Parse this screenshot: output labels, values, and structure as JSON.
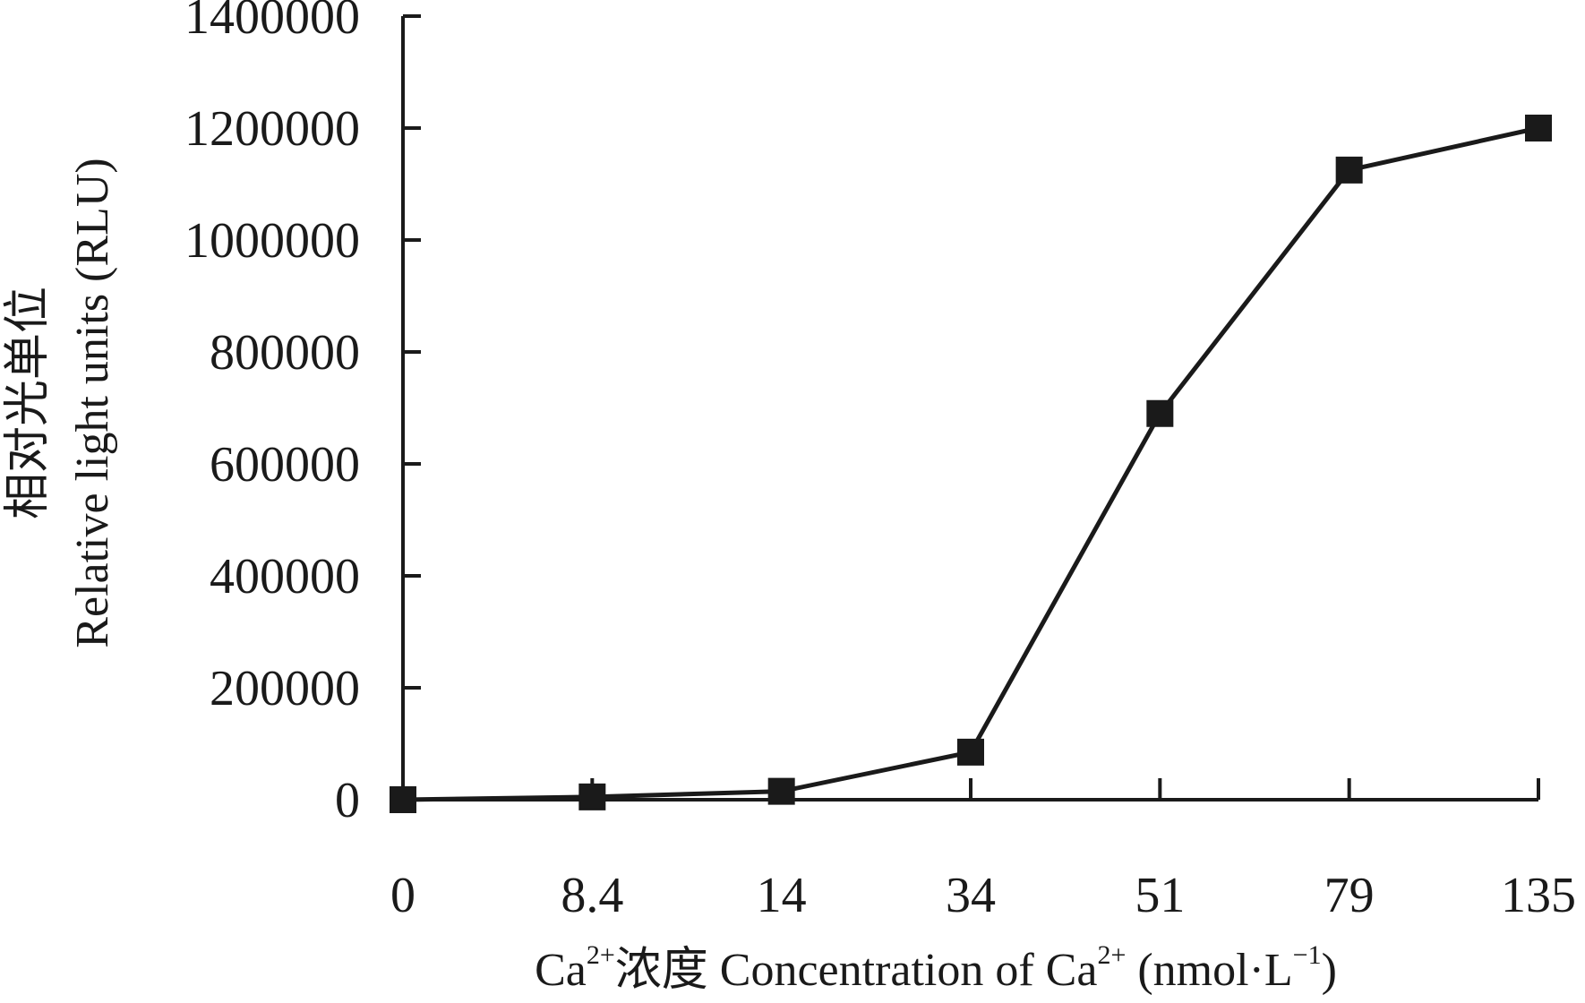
{
  "chart_data": {
    "type": "line",
    "categories": [
      "0",
      "8.4",
      "14",
      "34",
      "51",
      "79",
      "135"
    ],
    "series": [
      {
        "values": [
          0,
          5000,
          15000,
          85000,
          690000,
          1125000,
          1200000
        ]
      }
    ],
    "ylim": [
      0,
      1400000
    ],
    "yticks": [
      0,
      200000,
      400000,
      600000,
      800000,
      1000000,
      1200000,
      1400000
    ],
    "ytick_labels": [
      "0",
      "200000",
      "400000",
      "600000",
      "800000",
      "1000000",
      "1200000",
      "1400000"
    ],
    "ylabel": {
      "line1": "相对光单位",
      "line2": "Relative light units (RLU)"
    },
    "xlabel": {
      "prefix": "Ca",
      "sup1": "2+",
      "middle": "浓度 Concentration of Ca",
      "sup2": "2+",
      "unit_open": " (nmol·L",
      "sup3": "−1",
      "unit_close": ")"
    },
    "grid": false,
    "legend": "none",
    "marker": "square",
    "line_color": "#1a1a1a"
  }
}
